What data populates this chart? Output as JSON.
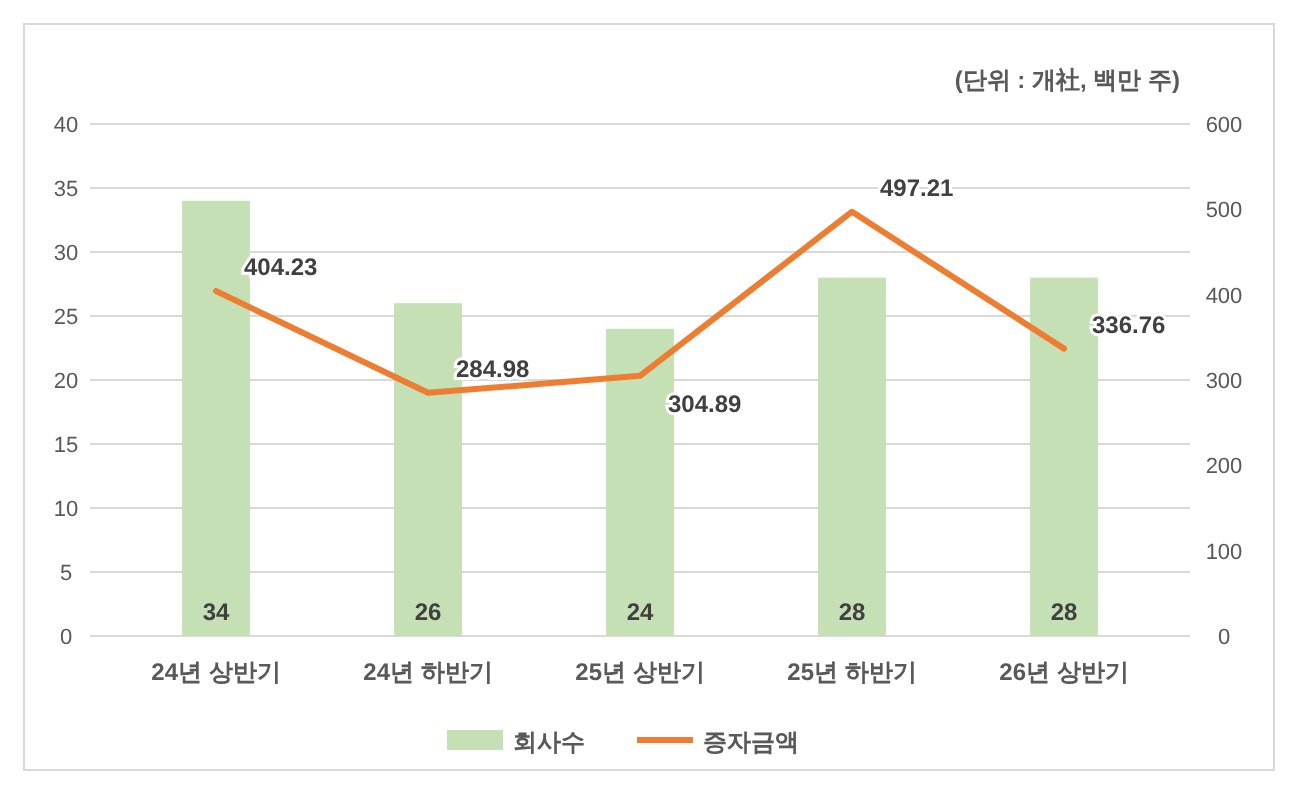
{
  "chart_data": {
    "type": "bar",
    "annotations": [
      "(단위 : 개社, 백만 주)"
    ],
    "categories": [
      "24년 상반기",
      "24년 하반기",
      "25년 상반기",
      "25년 하반기",
      "26년 상반기"
    ],
    "series": [
      {
        "name": "회사수",
        "color": "#c5e0b4",
        "values": [
          34,
          26,
          24,
          28,
          28
        ]
      },
      {
        "name": "증자금액",
        "type": "line",
        "axis": "y2",
        "color": "#ed7d31",
        "values": [
          404.23,
          284.98,
          304.89,
          497.21,
          336.76
        ]
      }
    ],
    "ylim": [
      0,
      40
    ],
    "yticks": [
      0,
      5,
      10,
      15,
      20,
      25,
      30,
      35,
      40
    ],
    "y2lim": [
      0,
      600
    ],
    "y2ticks": [
      0,
      100,
      200,
      300,
      400,
      500,
      600
    ],
    "grid": "y",
    "legend": "bottom",
    "data_labels": true
  }
}
